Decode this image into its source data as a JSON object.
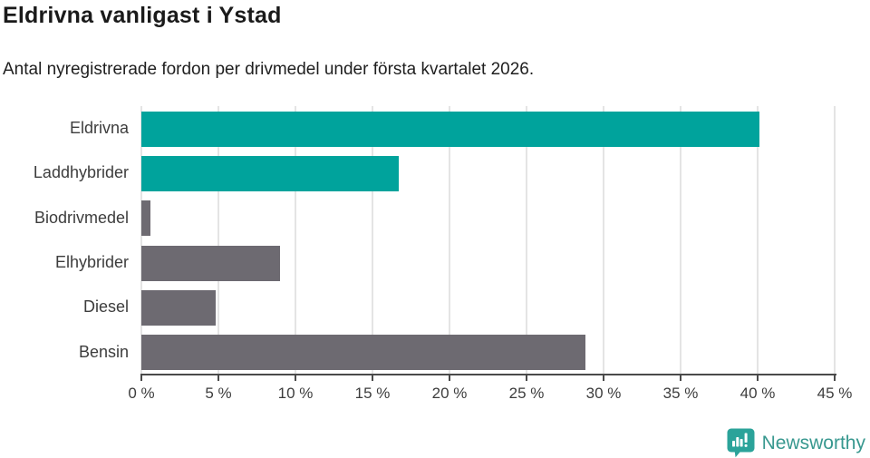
{
  "header": {
    "title": "Eldrivna vanligast i Ystad",
    "subtitle": "Antal nyregistrerade fordon per drivmedel under första kvartalet 2026."
  },
  "chart_data": {
    "type": "bar",
    "orientation": "horizontal",
    "title": "Eldrivna vanligast i Ystad",
    "subtitle": "Antal nyregistrerade fordon per drivmedel under första kvartalet 2026.",
    "categories": [
      "Eldrivna",
      "Laddhybrider",
      "Biodrivmedel",
      "Elhybrider",
      "Diesel",
      "Bensin"
    ],
    "values": [
      40.1,
      16.7,
      0.6,
      9.0,
      4.8,
      28.8
    ],
    "unit": "%",
    "bar_colors": [
      "#00a39c",
      "#00a39c",
      "#6d6a71",
      "#6d6a71",
      "#6d6a71",
      "#6d6a71"
    ],
    "xlabel": "",
    "ylabel": "",
    "xlim": [
      0,
      45
    ],
    "x_ticks": [
      0,
      5,
      10,
      15,
      20,
      25,
      30,
      35,
      40,
      45
    ],
    "x_tick_labels": [
      "0 %",
      "5 %",
      "10 %",
      "15 %",
      "20 %",
      "25 %",
      "30 %",
      "35 %",
      "40 %",
      "45 %"
    ],
    "grid": "vertical-only",
    "legend": "none"
  },
  "colors": {
    "accent_teal": "#00a39c",
    "neutral_gray": "#6d6a71",
    "gridline": "#e4e4e4",
    "axis": "#4a4a4a",
    "title_text": "#1a1a1a",
    "label_text": "#3d3d3d"
  },
  "footer": {
    "brand": "Newsworthy",
    "brand_text_color": "#38988f",
    "icon": "newsworthy-bar-chart-bubble-icon",
    "icon_color": "#2ba39a"
  }
}
